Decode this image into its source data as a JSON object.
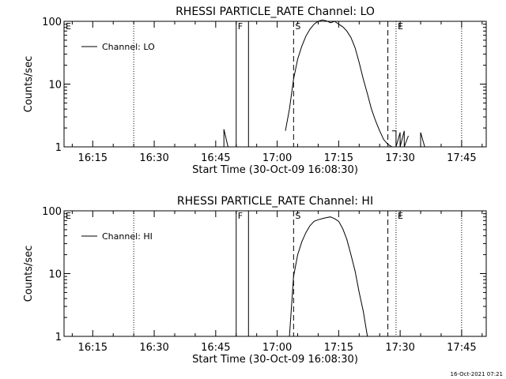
{
  "chart_data": [
    {
      "type": "line",
      "title": "RHESSI PARTICLE_RATE Channel: LO",
      "xlabel": "Start Time (30-Oct-09 16:08:30)",
      "ylabel": "Counts/sec",
      "yscale": "log",
      "xlim": [
        "16:08",
        "17:51"
      ],
      "ylim": [
        1,
        100
      ],
      "x_ticks": [
        "16:15",
        "16:30",
        "16:45",
        "17:00",
        "17:15",
        "17:30",
        "17:45"
      ],
      "y_ticks": [
        "1",
        "10",
        "100"
      ],
      "legend": {
        "label": "Channel: LO",
        "placement": "top-left"
      },
      "markers": [
        {
          "label": "E",
          "time": "16:08",
          "style": "dotted"
        },
        {
          "label": "",
          "time": "16:25",
          "style": "dotted"
        },
        {
          "label": "F",
          "time": "16:50",
          "style": "solid"
        },
        {
          "label": "",
          "time": "16:53",
          "style": "solid"
        },
        {
          "label": "S",
          "time": "17:04",
          "style": "dashed"
        },
        {
          "label": "",
          "time": "17:27",
          "style": "dashed"
        },
        {
          "label": "E",
          "time": "17:29",
          "style": "dotted"
        },
        {
          "label": "",
          "time": "17:45",
          "style": "dotted"
        }
      ],
      "series": [
        {
          "name": "Channel: LO",
          "segments": [
            {
              "x": [
                "16:47",
                "16:47",
                "16:48"
              ],
              "y": [
                1,
                1.9,
                1
              ]
            },
            {
              "x": [
                "17:02",
                "17:03",
                "17:04",
                "17:05",
                "17:06",
                "17:07",
                "17:08",
                "17:09",
                "17:10",
                "17:11",
                "17:12",
                "17:13",
                "17:14",
                "17:15",
                "17:16",
                "17:17",
                "17:18",
                "17:19",
                "17:20",
                "17:21",
                "17:22",
                "17:23",
                "17:24",
                "17:25",
                "17:26",
                "17:27",
                "17:28"
              ],
              "y": [
                1.8,
                4,
                12,
                25,
                40,
                58,
                75,
                90,
                100,
                105,
                102,
                95,
                100,
                90,
                82,
                70,
                55,
                38,
                22,
                12,
                7,
                4,
                2.6,
                1.8,
                1.3,
                1.1,
                1
              ]
            },
            {
              "x": [
                "17:28",
                "17:29",
                "17:29",
                "17:30",
                "17:30",
                "17:31",
                "17:31",
                "17:32"
              ],
              "y": [
                1.8,
                1.8,
                1,
                1.7,
                1,
                1.8,
                1,
                1.5
              ]
            },
            {
              "x": [
                "17:35",
                "17:35",
                "17:36"
              ],
              "y": [
                1,
                1.7,
                1
              ]
            }
          ]
        }
      ]
    },
    {
      "type": "line",
      "title": "RHESSI PARTICLE_RATE Channel: HI",
      "xlabel": "Start Time (30-Oct-09 16:08:30)",
      "ylabel": "Counts/sec",
      "yscale": "log",
      "xlim": [
        "16:08",
        "17:51"
      ],
      "ylim": [
        1,
        100
      ],
      "x_ticks": [
        "16:15",
        "16:30",
        "16:45",
        "17:00",
        "17:15",
        "17:30",
        "17:45"
      ],
      "y_ticks": [
        "1",
        "10",
        "100"
      ],
      "legend": {
        "label": "Channel: HI",
        "placement": "top-left"
      },
      "markers": [
        {
          "label": "E",
          "time": "16:08",
          "style": "dotted"
        },
        {
          "label": "",
          "time": "16:25",
          "style": "dotted"
        },
        {
          "label": "F",
          "time": "16:50",
          "style": "solid"
        },
        {
          "label": "",
          "time": "16:53",
          "style": "solid"
        },
        {
          "label": "S",
          "time": "17:04",
          "style": "dashed"
        },
        {
          "label": "",
          "time": "17:27",
          "style": "dashed"
        },
        {
          "label": "E",
          "time": "17:29",
          "style": "dotted"
        },
        {
          "label": "",
          "time": "17:45",
          "style": "dotted"
        }
      ],
      "series": [
        {
          "name": "Channel: HI",
          "segments": [
            {
              "x": [
                "17:03",
                "17:04",
                "17:05",
                "17:06",
                "17:07",
                "17:08",
                "17:09",
                "17:10",
                "17:11",
                "17:12",
                "17:13",
                "17:14",
                "17:15",
                "17:16",
                "17:17",
                "17:18",
                "17:19",
                "17:20",
                "17:21",
                "17:22"
              ],
              "y": [
                1,
                9,
                20,
                32,
                45,
                58,
                68,
                72,
                75,
                78,
                80,
                75,
                68,
                52,
                35,
                20,
                11,
                5,
                2.5,
                1
              ]
            }
          ]
        }
      ]
    }
  ],
  "footer": {
    "date_stamp": "16-Oct-2021 07:21"
  }
}
